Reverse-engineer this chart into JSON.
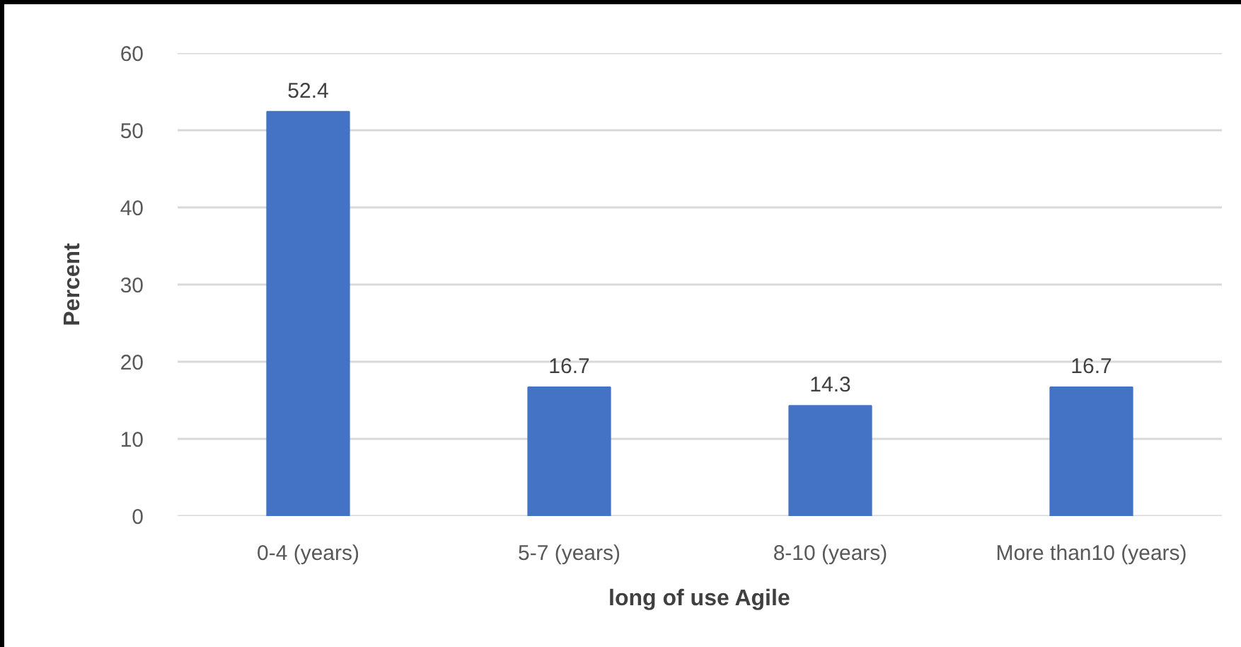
{
  "chart_data": {
    "type": "bar",
    "xlabel": "long of use Agile",
    "ylabel": "Percent",
    "categories": [
      "0-4 (years)",
      "5-7 (years)",
      "8-10 (years)",
      "More than10 (years)"
    ],
    "values": [
      52.4,
      16.7,
      14.3,
      16.7
    ],
    "color": "#4472c4",
    "ylim": [
      0,
      60
    ],
    "yticks": [
      0,
      10,
      20,
      30,
      40,
      50,
      60
    ],
    "grid": "y",
    "data_labels": true
  }
}
